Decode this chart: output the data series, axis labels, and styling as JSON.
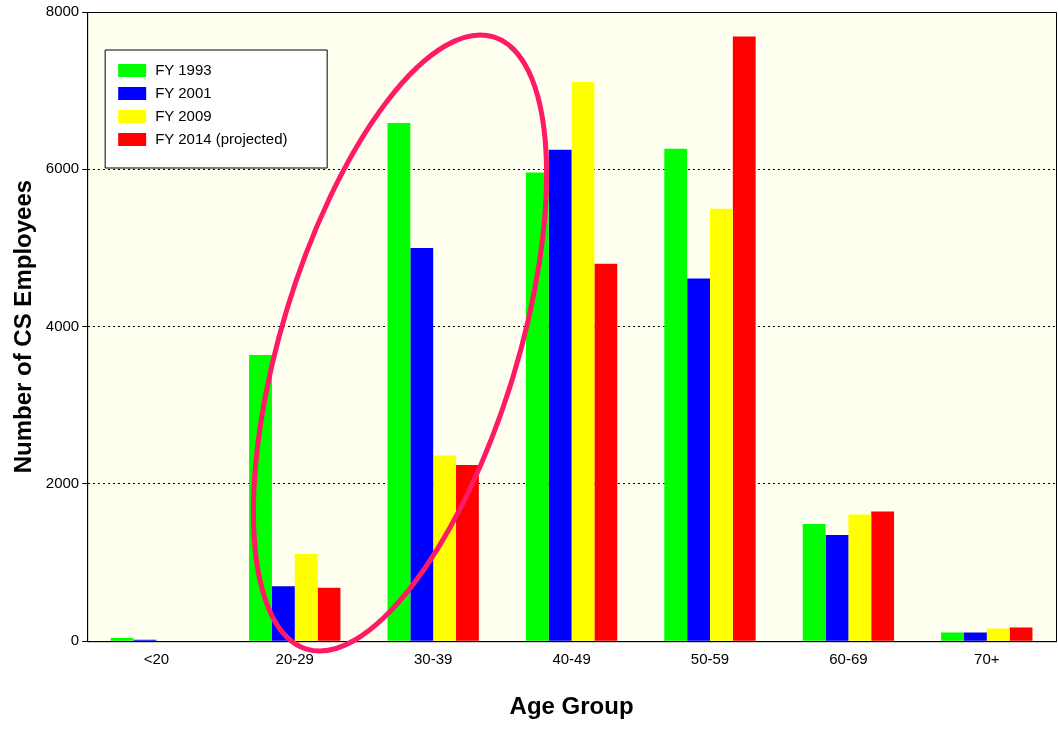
{
  "chart_data": {
    "type": "bar",
    "xlabel": "Age Group",
    "ylabel": "Number of CS Employees",
    "categories": [
      "<20",
      "20-29",
      "30-39",
      "40-49",
      "50-59",
      "60-69",
      "70+"
    ],
    "series": [
      {
        "name": "FY 1993",
        "color": "#00ff00",
        "values": [
          40,
          3640,
          6590,
          5960,
          6260,
          1490,
          110
        ]
      },
      {
        "name": "FY 2001",
        "color": "#0000ff",
        "values": [
          20,
          700,
          5000,
          6250,
          4610,
          1350,
          110
        ]
      },
      {
        "name": "FY 2009",
        "color": "#ffff00",
        "values": [
          0,
          1110,
          2360,
          7110,
          5500,
          1610,
          160
        ]
      },
      {
        "name": "FY 2014 (projected)",
        "color": "#ff0000",
        "values": [
          0,
          680,
          2240,
          4800,
          7690,
          1650,
          175
        ]
      }
    ],
    "ylim": [
      0,
      8000
    ],
    "yticks": [
      0,
      2000,
      4000,
      6000,
      8000
    ],
    "grid": "y",
    "legend": "top left"
  }
}
